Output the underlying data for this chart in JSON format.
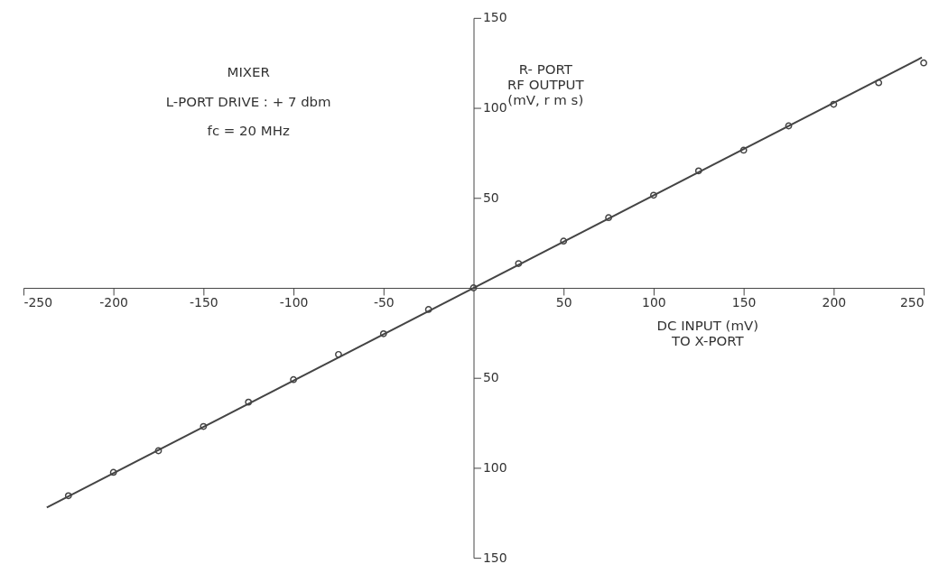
{
  "chart_data": {
    "type": "scatter",
    "xlabel": "DC INPUT (mV)\nTO X-PORT",
    "ylabel": "R- PORT\nRF OUTPUT\n(mV, r m s)",
    "annotations": [
      "MIXER",
      "L-PORT DRIVE : + 7 dbm",
      "fc = 20 MHz"
    ],
    "xlim": [
      -250,
      250
    ],
    "ylim": [
      -150,
      150
    ],
    "xticks": [
      -250,
      -200,
      -150,
      -100,
      -50,
      50,
      100,
      150,
      200,
      250
    ],
    "yticks": [
      {
        "value": -150,
        "label": "150"
      },
      {
        "value": -100,
        "label": "100"
      },
      {
        "value": -50,
        "label": "50"
      },
      {
        "value": 50,
        "label": "50"
      },
      {
        "value": 100,
        "label": "100"
      },
      {
        "value": 150,
        "label": "150"
      }
    ],
    "grid": false,
    "series": [
      {
        "marker": "circle",
        "color": "#444444",
        "x": [
          -225,
          -200,
          -175,
          -150,
          -125,
          -100,
          -75,
          -50,
          -25,
          0,
          25,
          50,
          75,
          100,
          125,
          150,
          175,
          200,
          225,
          250
        ],
        "values": [
          -115.5,
          -102.5,
          -90.5,
          -77,
          -63.5,
          -51,
          -37,
          -25.5,
          -12,
          0,
          13.5,
          26,
          39,
          51.5,
          65,
          76.5,
          90,
          102,
          114,
          125
        ]
      },
      {
        "type": "line",
        "line_style": "solid",
        "marker": "none",
        "color": "#444444",
        "x": [
          -237,
          249
        ],
        "values": [
          -122,
          128
        ]
      }
    ]
  }
}
